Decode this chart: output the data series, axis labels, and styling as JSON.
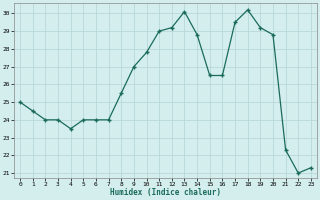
{
  "x": [
    0,
    1,
    2,
    3,
    4,
    5,
    6,
    7,
    8,
    9,
    10,
    11,
    12,
    13,
    14,
    15,
    16,
    17,
    18,
    19,
    20,
    21,
    22,
    23
  ],
  "y": [
    25.0,
    24.5,
    24.0,
    24.0,
    23.5,
    24.0,
    24.0,
    24.0,
    25.5,
    27.0,
    27.8,
    29.0,
    29.2,
    30.1,
    28.8,
    26.5,
    26.5,
    29.5,
    30.2,
    29.2,
    28.8,
    22.3,
    21.0,
    21.3
  ],
  "line_color": "#1a6b5a",
  "marker_color": "#1a6b5a",
  "bg_color": "#d4eeee",
  "grid_color": "#b8d8d8",
  "xlabel": "Humidex (Indice chaleur)",
  "ylim": [
    20.7,
    30.6
  ],
  "xlim": [
    -0.5,
    23.5
  ],
  "yticks": [
    21,
    22,
    23,
    24,
    25,
    26,
    27,
    28,
    29,
    30
  ],
  "xticks": [
    0,
    1,
    2,
    3,
    4,
    5,
    6,
    7,
    8,
    9,
    10,
    11,
    12,
    13,
    14,
    15,
    16,
    17,
    18,
    19,
    20,
    21,
    22,
    23
  ]
}
